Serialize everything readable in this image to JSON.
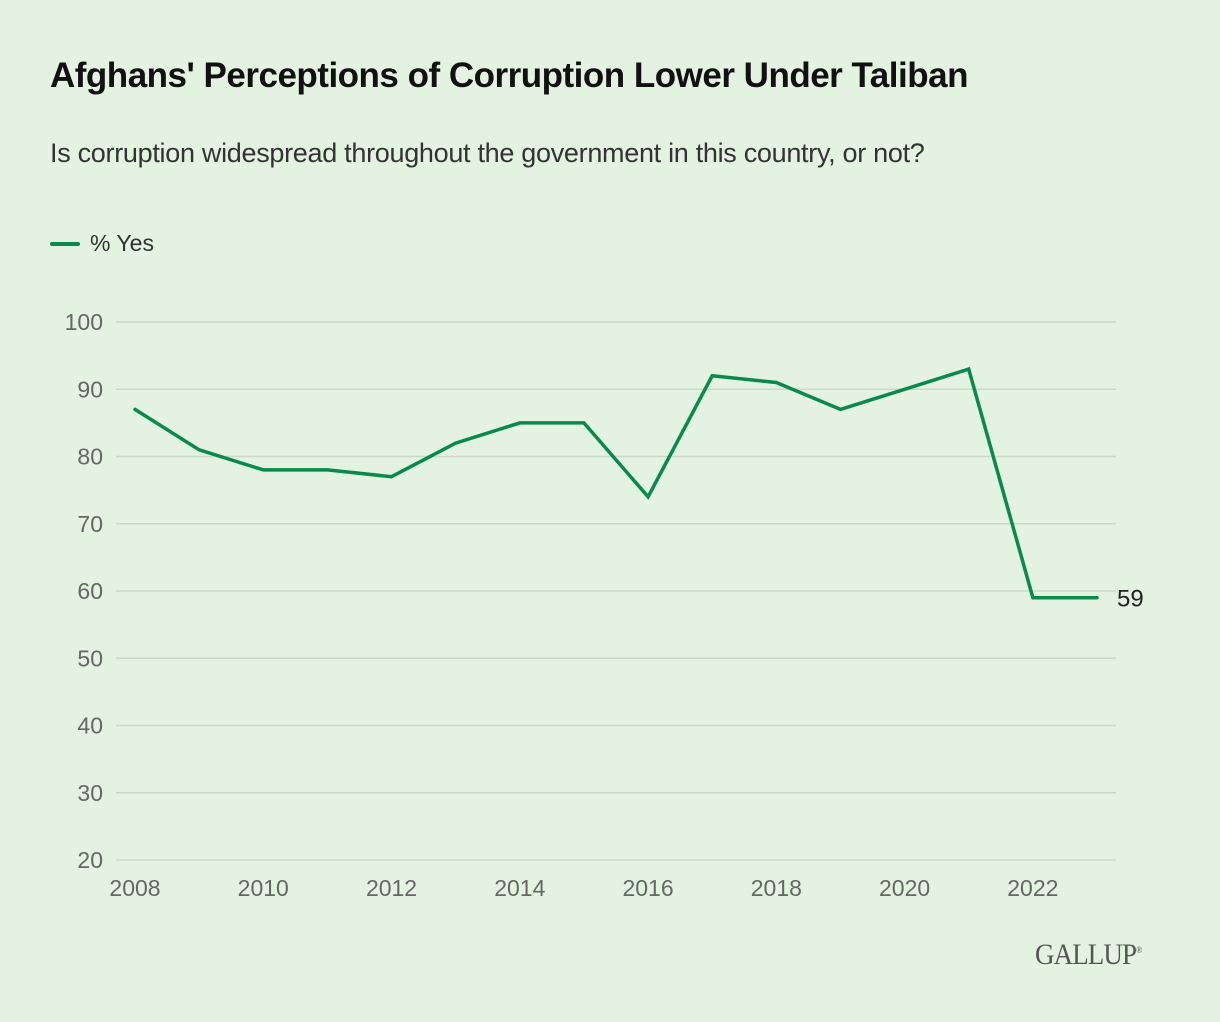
{
  "header": {
    "title": "Afghans' Perceptions of Corruption Lower Under Taliban",
    "subtitle": "Is corruption widespread throughout the government in this country, or not?"
  },
  "legend": {
    "label": "% Yes",
    "color": "#0a8a4a"
  },
  "branding": {
    "logo_text": "GALLUP",
    "logo_mark": "®"
  },
  "colors": {
    "background": "#e3f2e1",
    "line": "#0a8a4a",
    "grid": "#c9dbc7",
    "tick_text": "#666666"
  },
  "chart_data": {
    "type": "line",
    "title": "Afghans' Perceptions of Corruption Lower Under Taliban",
    "subtitle": "Is corruption widespread throughout the government in this country, or not?",
    "xlabel": "",
    "ylabel": "",
    "x": [
      2008,
      2009,
      2010,
      2011,
      2012,
      2013,
      2014,
      2015,
      2016,
      2017,
      2018,
      2019,
      2020,
      2021,
      2022,
      2023
    ],
    "series": [
      {
        "name": "% Yes",
        "values": [
          87,
          81,
          78,
          78,
          77,
          82,
          85,
          85,
          74,
          92,
          91,
          87,
          90,
          93,
          59,
          59
        ]
      }
    ],
    "xlim": [
      2008,
      2023
    ],
    "ylim": [
      20,
      100
    ],
    "x_ticks": [
      "2008",
      "2010",
      "2012",
      "2014",
      "2016",
      "2018",
      "2020",
      "2022"
    ],
    "y_ticks": [
      "20",
      "30",
      "40",
      "50",
      "60",
      "70",
      "80",
      "90",
      "100"
    ],
    "grid": "horizontal",
    "legend_position": "top-left",
    "annotations": [
      {
        "x": 2023,
        "value": 59,
        "text": "59"
      }
    ]
  }
}
